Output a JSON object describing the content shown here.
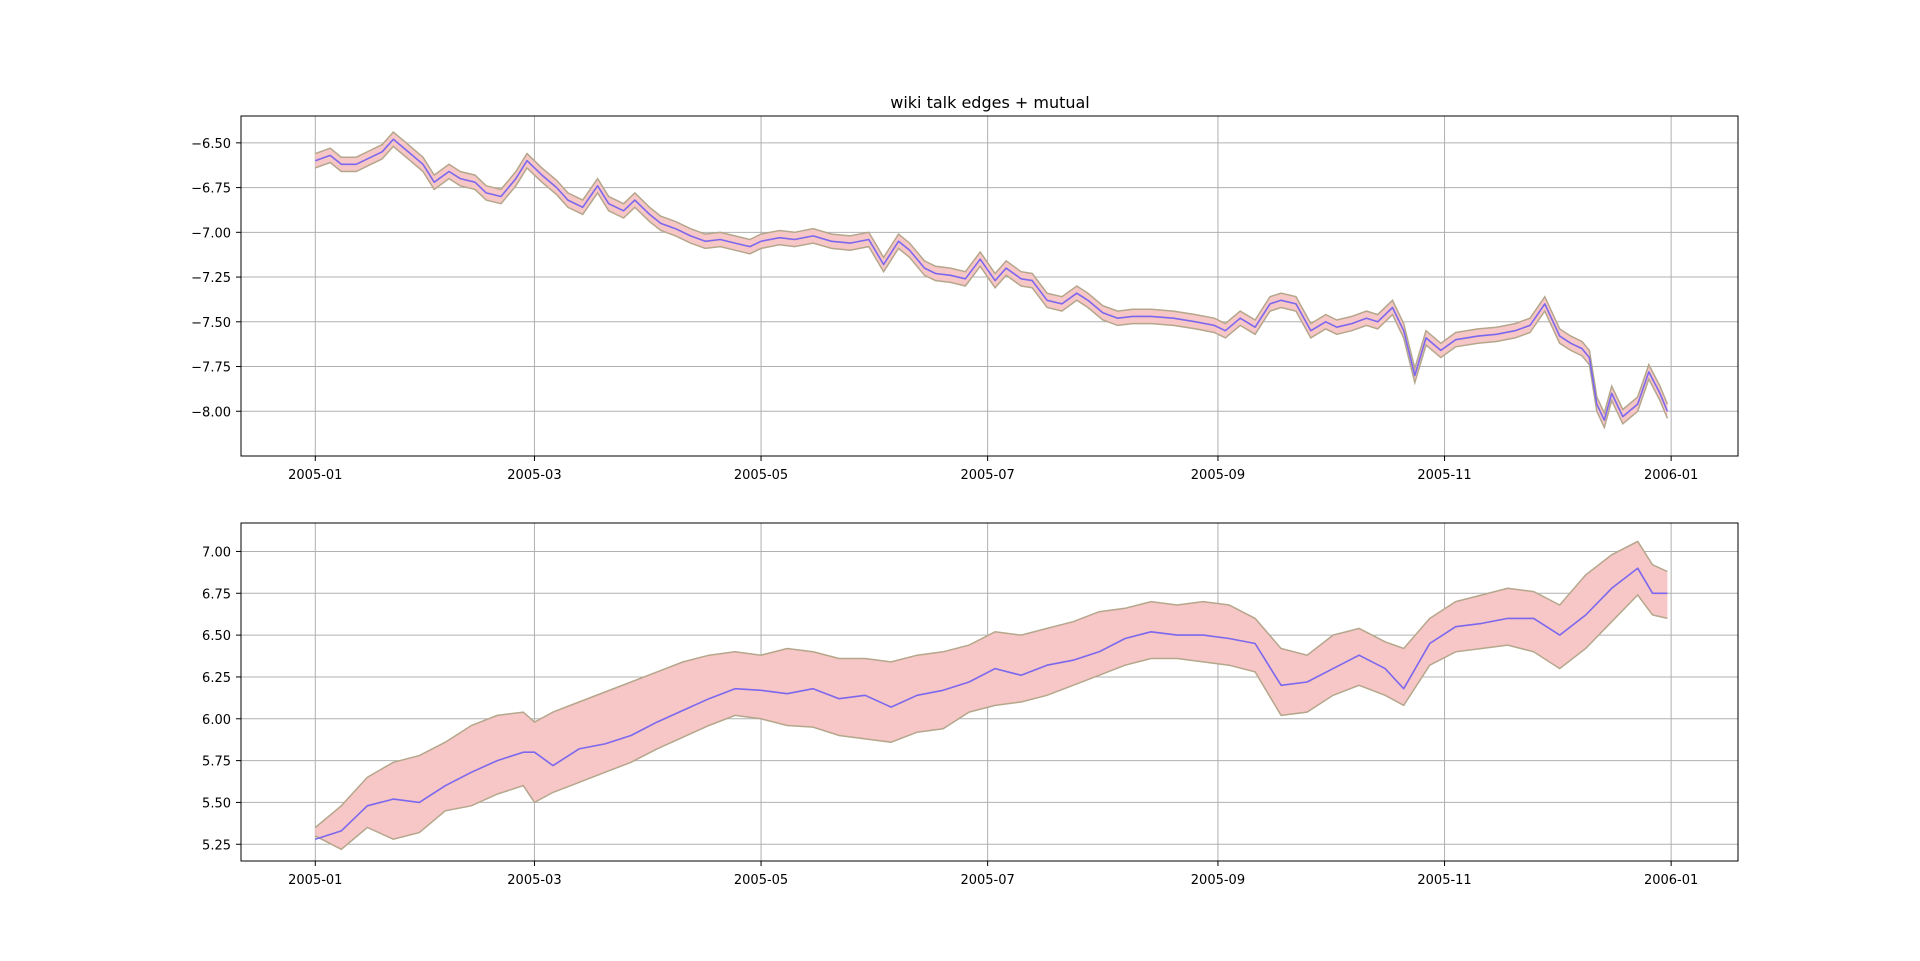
{
  "chart_data": [
    {
      "type": "line",
      "title": "wiki talk edges + mutual",
      "xlabel": "",
      "ylabel": "",
      "grid": true,
      "xlim": [
        "2004-12-12",
        "2006-01-19"
      ],
      "ylim": [
        -8.25,
        -6.35
      ],
      "x_ticks": [
        "2005-01",
        "2005-03",
        "2005-05",
        "2005-07",
        "2005-09",
        "2005-11",
        "2006-01"
      ],
      "y_ticks": [
        -8.0,
        -7.75,
        -7.5,
        -7.25,
        -7.0,
        -6.75,
        -6.5
      ],
      "y_tick_labels": [
        "−8.00",
        "−7.75",
        "−7.50",
        "−7.25",
        "−7.00",
        "−6.75",
        "−6.50"
      ],
      "band_halfwidth": 0.04,
      "series": [
        {
          "x": [
            "2005-01-01",
            "2005-01-05",
            "2005-01-08",
            "2005-01-12",
            "2005-01-16",
            "2005-01-19",
            "2005-01-22",
            "2005-01-26",
            "2005-01-30",
            "2005-02-02",
            "2005-02-06",
            "2005-02-09",
            "2005-02-13",
            "2005-02-16",
            "2005-02-20",
            "2005-02-24",
            "2005-02-27",
            "2005-03-03",
            "2005-03-07",
            "2005-03-10",
            "2005-03-14",
            "2005-03-18",
            "2005-03-21",
            "2005-03-25",
            "2005-03-28",
            "2005-04-01",
            "2005-04-04",
            "2005-04-08",
            "2005-04-12",
            "2005-04-16",
            "2005-04-20",
            "2005-04-24",
            "2005-04-28",
            "2005-05-01",
            "2005-05-06",
            "2005-05-10",
            "2005-05-15",
            "2005-05-20",
            "2005-05-25",
            "2005-05-30",
            "2005-06-03",
            "2005-06-07",
            "2005-06-10",
            "2005-06-14",
            "2005-06-17",
            "2005-06-21",
            "2005-06-25",
            "2005-06-29",
            "2005-07-03",
            "2005-07-06",
            "2005-07-10",
            "2005-07-13",
            "2005-07-17",
            "2005-07-21",
            "2005-07-25",
            "2005-07-28",
            "2005-08-01",
            "2005-08-05",
            "2005-08-09",
            "2005-08-14",
            "2005-08-20",
            "2005-08-26",
            "2005-08-31",
            "2005-09-03",
            "2005-09-07",
            "2005-09-11",
            "2005-09-15",
            "2005-09-18",
            "2005-09-22",
            "2005-09-26",
            "2005-09-30",
            "2005-10-03",
            "2005-10-07",
            "2005-10-11",
            "2005-10-14",
            "2005-10-18",
            "2005-10-21",
            "2005-10-24",
            "2005-10-27",
            "2005-10-31",
            "2005-11-04",
            "2005-11-10",
            "2005-11-15",
            "2005-11-20",
            "2005-11-24",
            "2005-11-28",
            "2005-12-02",
            "2005-12-05",
            "2005-12-08",
            "2005-12-10",
            "2005-12-12",
            "2005-12-14",
            "2005-12-16",
            "2005-12-19",
            "2005-12-23",
            "2005-12-26",
            "2005-12-29",
            "2005-12-31"
          ],
          "values": [
            -6.6,
            -6.57,
            -6.62,
            -6.62,
            -6.58,
            -6.55,
            -6.48,
            -6.55,
            -6.62,
            -6.72,
            -6.66,
            -6.7,
            -6.72,
            -6.78,
            -6.8,
            -6.7,
            -6.6,
            -6.68,
            -6.75,
            -6.82,
            -6.86,
            -6.74,
            -6.84,
            -6.88,
            -6.82,
            -6.9,
            -6.95,
            -6.98,
            -7.02,
            -7.05,
            -7.04,
            -7.06,
            -7.08,
            -7.05,
            -7.03,
            -7.04,
            -7.02,
            -7.05,
            -7.06,
            -7.04,
            -7.18,
            -7.05,
            -7.1,
            -7.2,
            -7.23,
            -7.24,
            -7.26,
            -7.15,
            -7.27,
            -7.2,
            -7.26,
            -7.27,
            -7.38,
            -7.4,
            -7.34,
            -7.38,
            -7.45,
            -7.48,
            -7.47,
            -7.47,
            -7.48,
            -7.5,
            -7.52,
            -7.55,
            -7.48,
            -7.53,
            -7.4,
            -7.38,
            -7.4,
            -7.55,
            -7.5,
            -7.53,
            -7.51,
            -7.48,
            -7.5,
            -7.42,
            -7.55,
            -7.8,
            -7.59,
            -7.66,
            -7.6,
            -7.58,
            -7.57,
            -7.55,
            -7.52,
            -7.4,
            -7.58,
            -7.62,
            -7.65,
            -7.7,
            -7.96,
            -8.05,
            -7.9,
            -8.03,
            -7.96,
            -7.78,
            -7.9,
            -8.0
          ]
        }
      ]
    },
    {
      "type": "line",
      "title": "",
      "xlabel": "",
      "ylabel": "",
      "grid": true,
      "xlim": [
        "2004-12-12",
        "2006-01-19"
      ],
      "ylim": [
        5.15,
        7.17
      ],
      "x_ticks": [
        "2005-01",
        "2005-03",
        "2005-05",
        "2005-07",
        "2005-09",
        "2005-11",
        "2006-01"
      ],
      "y_ticks": [
        5.25,
        5.5,
        5.75,
        6.0,
        6.25,
        6.5,
        6.75,
        7.0
      ],
      "y_tick_labels": [
        "5.25",
        "5.50",
        "5.75",
        "6.00",
        "6.25",
        "6.50",
        "6.75",
        "7.00"
      ],
      "series": [
        {
          "x": [
            "2005-01-01",
            "2005-01-08",
            "2005-01-15",
            "2005-01-22",
            "2005-01-29",
            "2005-02-05",
            "2005-02-12",
            "2005-02-19",
            "2005-02-26",
            "2005-03-01",
            "2005-03-06",
            "2005-03-13",
            "2005-03-20",
            "2005-03-27",
            "2005-04-03",
            "2005-04-10",
            "2005-04-17",
            "2005-04-24",
            "2005-05-01",
            "2005-05-08",
            "2005-05-15",
            "2005-05-22",
            "2005-05-29",
            "2005-06-05",
            "2005-06-12",
            "2005-06-19",
            "2005-06-26",
            "2005-07-03",
            "2005-07-10",
            "2005-07-17",
            "2005-07-24",
            "2005-07-31",
            "2005-08-07",
            "2005-08-14",
            "2005-08-21",
            "2005-08-28",
            "2005-09-04",
            "2005-09-11",
            "2005-09-18",
            "2005-09-25",
            "2005-10-02",
            "2005-10-09",
            "2005-10-16",
            "2005-10-21",
            "2005-10-28",
            "2005-11-04",
            "2005-11-11",
            "2005-11-18",
            "2005-11-25",
            "2005-12-02",
            "2005-12-09",
            "2005-12-16",
            "2005-12-23",
            "2005-12-27",
            "2005-12-31"
          ],
          "values": [
            5.28,
            5.33,
            5.48,
            5.52,
            5.5,
            5.6,
            5.68,
            5.75,
            5.8,
            5.8,
            5.72,
            5.82,
            5.85,
            5.9,
            5.98,
            6.05,
            6.12,
            6.18,
            6.17,
            6.15,
            6.18,
            6.12,
            6.14,
            6.07,
            6.14,
            6.17,
            6.22,
            6.3,
            6.26,
            6.32,
            6.35,
            6.4,
            6.48,
            6.52,
            6.5,
            6.5,
            6.48,
            6.45,
            6.2,
            6.22,
            6.3,
            6.38,
            6.3,
            6.18,
            6.45,
            6.55,
            6.57,
            6.6,
            6.6,
            6.5,
            6.62,
            6.78,
            6.9,
            6.75,
            6.75
          ],
          "lower": [
            5.3,
            5.22,
            5.35,
            5.28,
            5.32,
            5.45,
            5.48,
            5.55,
            5.6,
            5.5,
            5.56,
            5.62,
            5.68,
            5.74,
            5.82,
            5.89,
            5.96,
            6.02,
            6.0,
            5.96,
            5.95,
            5.9,
            5.88,
            5.86,
            5.92,
            5.94,
            6.04,
            6.08,
            6.1,
            6.14,
            6.2,
            6.26,
            6.32,
            6.36,
            6.36,
            6.34,
            6.32,
            6.28,
            6.02,
            6.04,
            6.14,
            6.2,
            6.14,
            6.08,
            6.32,
            6.4,
            6.42,
            6.44,
            6.4,
            6.3,
            6.42,
            6.58,
            6.74,
            6.62,
            6.6
          ],
          "upper": [
            5.35,
            5.48,
            5.65,
            5.74,
            5.78,
            5.86,
            5.96,
            6.02,
            6.04,
            5.98,
            6.04,
            6.1,
            6.16,
            6.22,
            6.28,
            6.34,
            6.38,
            6.4,
            6.38,
            6.42,
            6.4,
            6.36,
            6.36,
            6.34,
            6.38,
            6.4,
            6.44,
            6.52,
            6.5,
            6.54,
            6.58,
            6.64,
            6.66,
            6.7,
            6.68,
            6.7,
            6.68,
            6.6,
            6.42,
            6.38,
            6.5,
            6.54,
            6.46,
            6.42,
            6.6,
            6.7,
            6.74,
            6.78,
            6.76,
            6.68,
            6.86,
            6.98,
            7.06,
            6.92,
            6.88
          ]
        }
      ]
    }
  ],
  "colors": {
    "line": "#7b68ee",
    "band_fill": "#f7c6c6",
    "band_edge": "#b5a78c",
    "grid": "#b0b0b0"
  }
}
